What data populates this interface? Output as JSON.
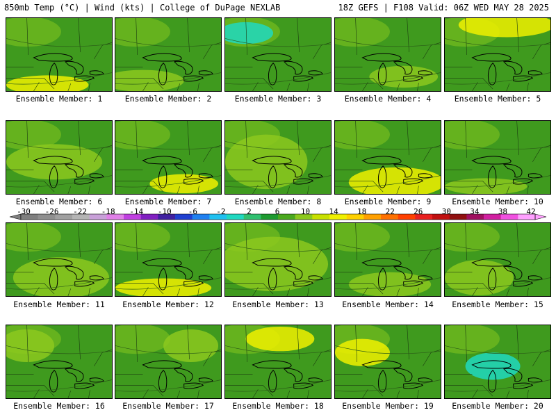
{
  "header": {
    "left": "850mb Temp (°C) | Wind (kts) | College of DuPage NEXLAB",
    "right": "18Z GEFS | F108 Valid: 06Z WED MAY 28 2025"
  },
  "panels": [
    {
      "label": "Ensemble Member: 1"
    },
    {
      "label": "Ensemble Member: 2"
    },
    {
      "label": "Ensemble Member: 3"
    },
    {
      "label": "Ensemble Member: 4"
    },
    {
      "label": "Ensemble Member: 5"
    },
    {
      "label": "Ensemble Member: 6"
    },
    {
      "label": "Ensemble Member: 7"
    },
    {
      "label": "Ensemble Member: 8"
    },
    {
      "label": "Ensemble Member: 9"
    },
    {
      "label": "Ensemble Member: 10"
    },
    {
      "label": "Ensemble Member: 11"
    },
    {
      "label": "Ensemble Member: 12"
    },
    {
      "label": "Ensemble Member: 13"
    },
    {
      "label": "Ensemble Member: 14"
    },
    {
      "label": "Ensemble Member: 15"
    },
    {
      "label": "Ensemble Member: 16"
    },
    {
      "label": "Ensemble Member: 17"
    },
    {
      "label": "Ensemble Member: 18"
    },
    {
      "label": "Ensemble Member: 19"
    },
    {
      "label": "Ensemble Member: 20"
    }
  ],
  "colorbar": {
    "ticks": [
      "-30",
      "-26",
      "-22",
      "-18",
      "-14",
      "-10",
      "-6",
      "-2",
      "2",
      "6",
      "10",
      "14",
      "18",
      "22",
      "26",
      "30",
      "34",
      "38",
      "42"
    ],
    "colors": [
      "#7f7f7f",
      "#8f8f8f",
      "#a0a0a0",
      "#b4b4b4",
      "#c8a0d8",
      "#e080e8",
      "#c040e0",
      "#8020c0",
      "#4020a0",
      "#2040d0",
      "#2080f0",
      "#20c0f0",
      "#20d8c0",
      "#30c070",
      "#1e9a30",
      "#4aa81e",
      "#8cc81e",
      "#c8e000",
      "#f0f000",
      "#ffd000",
      "#ffa000",
      "#ff7000",
      "#ff4000",
      "#e82020",
      "#c01010",
      "#901010",
      "#a01060",
      "#d020a0",
      "#f050e0",
      "#ffa0ff"
    ],
    "min": -30,
    "max": 42
  }
}
